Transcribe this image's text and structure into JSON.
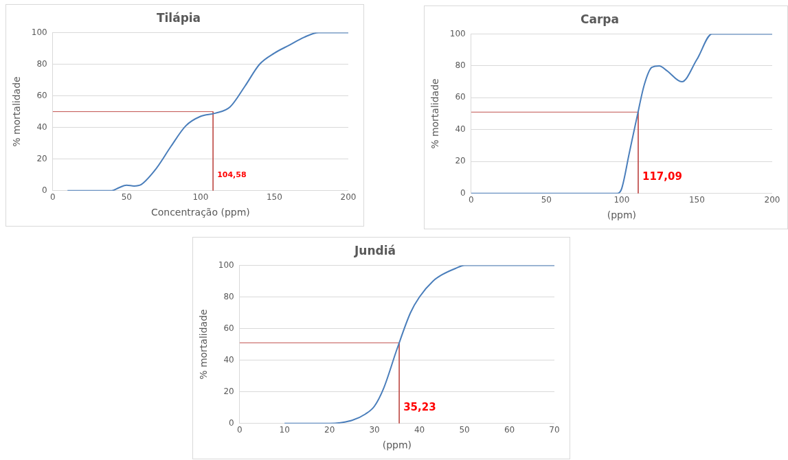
{
  "chart_data": [
    {
      "type": "line",
      "title": "Tilápia",
      "xlabel": "Concentração (ppm)",
      "ylabel": "% mortalidade",
      "series": [
        {
          "color": "#4a7ebb",
          "x": [
            10,
            20,
            30,
            40,
            45,
            50,
            55,
            60,
            70,
            80,
            90,
            100,
            110,
            120,
            130,
            140,
            150,
            160,
            170,
            180,
            190,
            200
          ],
          "values": [
            0,
            0,
            0,
            0,
            2,
            3.5,
            3,
            4,
            14,
            28,
            41,
            47,
            49,
            53,
            66,
            80,
            87,
            92,
            97,
            100,
            100,
            100
          ]
        },
        {
          "type": "line",
          "color": "#c0504d",
          "x": [
            0,
            108.5,
            108.5
          ],
          "values": [
            50,
            50,
            0
          ]
        }
      ],
      "annotations": [
        "104,58"
      ],
      "xlim": [
        0,
        200
      ],
      "xticks": [
        0,
        50,
        100,
        150,
        200
      ],
      "ylim": [
        0,
        100
      ],
      "yticks": [
        0,
        20,
        40,
        60,
        80,
        100
      ],
      "grid": "y",
      "legend": false,
      "marker": "none",
      "line_style": "solid"
    },
    {
      "type": "line",
      "title": "Carpa",
      "xlabel": "(ppm)",
      "ylabel": "% mortalidade",
      "series": [
        {
          "color": "#4a7ebb",
          "x": [
            0,
            20,
            40,
            60,
            80,
            90,
            97,
            100,
            105,
            110,
            115,
            120,
            125,
            130,
            140,
            150,
            160,
            170,
            180,
            190,
            200
          ],
          "values": [
            0,
            0,
            0,
            0,
            0,
            0,
            0,
            3,
            25,
            47,
            68,
            79,
            80,
            77,
            70,
            84,
            100,
            100,
            100,
            100,
            100
          ]
        },
        {
          "type": "line",
          "color": "#c0504d",
          "x": [
            0,
            111,
            111
          ],
          "values": [
            51,
            51,
            0
          ]
        }
      ],
      "annotations": [
        "117,09"
      ],
      "xlim": [
        0,
        200
      ],
      "xticks": [
        0,
        50,
        100,
        150,
        200
      ],
      "ylim": [
        0,
        100
      ],
      "yticks": [
        0,
        20,
        40,
        60,
        80,
        100
      ],
      "grid": "y",
      "legend": false,
      "marker": "none",
      "line_style": "solid"
    },
    {
      "type": "line",
      "title": "Jundiá",
      "xlabel": "(ppm)",
      "ylabel": "% mortalidade",
      "series": [
        {
          "color": "#4a7ebb",
          "x": [
            10,
            15,
            20,
            25,
            28,
            30,
            32,
            35,
            38,
            40,
            43,
            45,
            48,
            50,
            55,
            60,
            65,
            70
          ],
          "values": [
            0,
            0,
            0,
            2,
            6,
            11,
            22,
            47,
            70,
            80,
            90,
            94,
            98,
            100,
            100,
            100,
            100,
            100
          ]
        },
        {
          "type": "line",
          "color": "#c0504d",
          "x": [
            0,
            35.5,
            35.5
          ],
          "values": [
            51,
            51,
            0
          ]
        }
      ],
      "annotations": [
        "35,23"
      ],
      "xlim": [
        0,
        70
      ],
      "xticks": [
        0,
        10,
        20,
        30,
        40,
        50,
        60,
        70
      ],
      "ylim": [
        0,
        100
      ],
      "yticks": [
        0,
        20,
        40,
        60,
        80,
        100
      ],
      "grid": "y",
      "legend": false,
      "marker": "none",
      "line_style": "solid"
    }
  ]
}
